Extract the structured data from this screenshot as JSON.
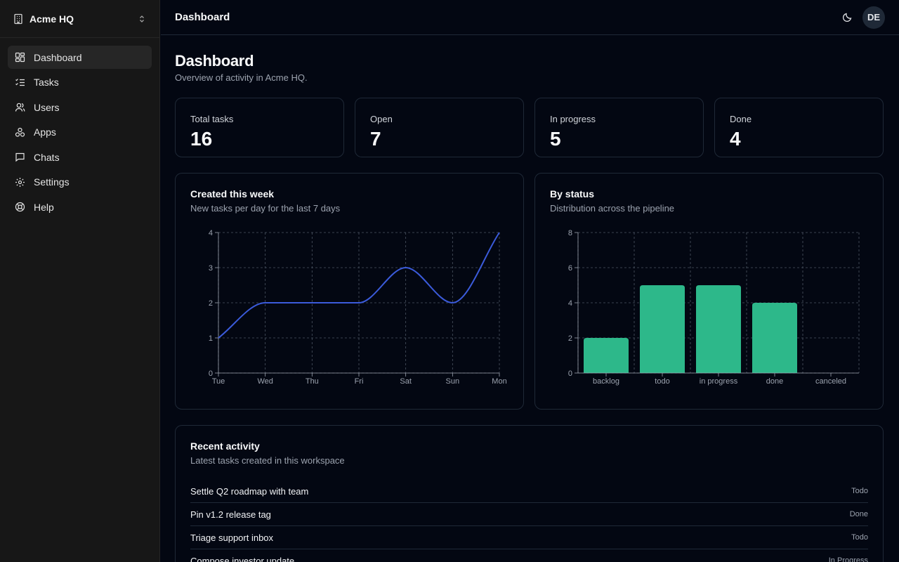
{
  "org": {
    "name": "Acme HQ",
    "icon": "building-icon"
  },
  "nav": [
    {
      "label": "Dashboard",
      "icon": "layout-dashboard-icon",
      "active": true
    },
    {
      "label": "Tasks",
      "icon": "list-checks-icon"
    },
    {
      "label": "Users",
      "icon": "users-icon"
    },
    {
      "label": "Apps",
      "icon": "apps-icon"
    },
    {
      "label": "Chats",
      "icon": "message-square-icon"
    },
    {
      "label": "Settings",
      "icon": "settings-icon"
    },
    {
      "label": "Help",
      "icon": "life-buoy-icon"
    }
  ],
  "header": {
    "title": "Dashboard",
    "avatar": "DE"
  },
  "page": {
    "title": "Dashboard",
    "subtitle": "Overview of activity in Acme HQ."
  },
  "stats": [
    {
      "label": "Total tasks",
      "value": "16"
    },
    {
      "label": "Open",
      "value": "7"
    },
    {
      "label": "In progress",
      "value": "5"
    },
    {
      "label": "Done",
      "value": "4"
    }
  ],
  "charts": {
    "line": {
      "title": "Created this week",
      "subtitle": "New tasks per day for the last 7 days"
    },
    "bar": {
      "title": "By status",
      "subtitle": "Distribution across the pipeline"
    }
  },
  "colors": {
    "line": "#3b5bdb",
    "bar": "#2db88a",
    "grid": "#4b5563",
    "tick": "#9ca3af"
  },
  "chart_data": [
    {
      "type": "line",
      "title": "Created this week",
      "subtitle": "New tasks per day for the last 7 days",
      "categories": [
        "Tue",
        "Wed",
        "Thu",
        "Fri",
        "Sat",
        "Sun",
        "Mon"
      ],
      "values": [
        1,
        2,
        2,
        2,
        3,
        2,
        4
      ],
      "ylim": [
        0,
        4
      ],
      "yticks": [
        0,
        1,
        2,
        3,
        4
      ],
      "grid": true
    },
    {
      "type": "bar",
      "title": "By status",
      "subtitle": "Distribution across the pipeline",
      "categories": [
        "backlog",
        "todo",
        "in progress",
        "done",
        "canceled"
      ],
      "values": [
        2,
        5,
        5,
        4,
        0
      ],
      "ylim": [
        0,
        8
      ],
      "yticks": [
        0,
        2,
        4,
        6,
        8
      ],
      "grid": true
    }
  ],
  "activity": {
    "title": "Recent activity",
    "subtitle": "Latest tasks created in this workspace",
    "rows": [
      {
        "title": "Settle Q2 roadmap with team",
        "status": "Todo"
      },
      {
        "title": "Pin v1.2 release tag",
        "status": "Done"
      },
      {
        "title": "Triage support inbox",
        "status": "Todo"
      },
      {
        "title": "Compose investor update",
        "status": "In Progress"
      }
    ]
  }
}
